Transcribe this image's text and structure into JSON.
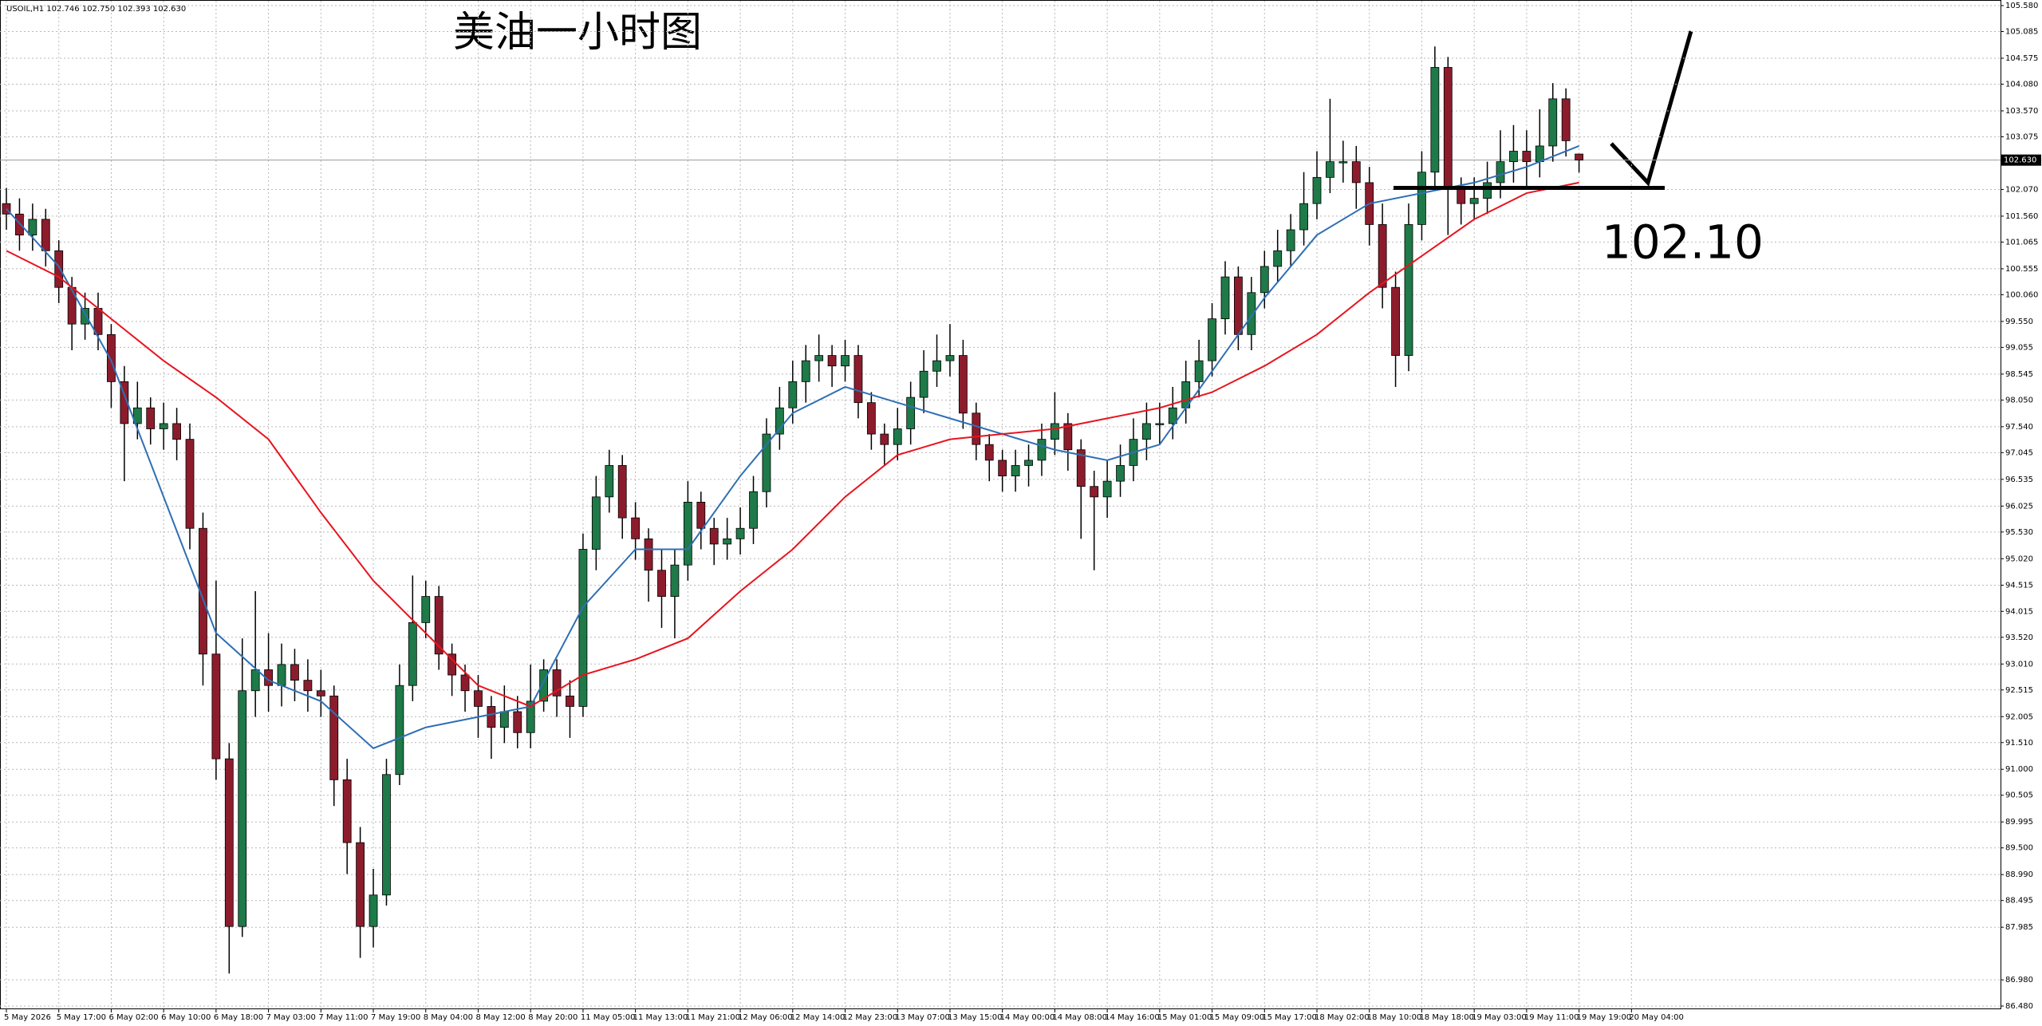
{
  "chart_data": {
    "type": "candlestick",
    "header": "USOIL,H1  102.746 102.750 102.393 102.630",
    "title": "美油一小时图",
    "level": {
      "value": 102.1,
      "label": "102.10"
    },
    "current_price": {
      "value": 102.63,
      "label": "102.630"
    },
    "ylim": [
      86.48,
      105.58
    ],
    "yticks": [
      {
        "value": 105.58,
        "label": "105.580"
      },
      {
        "value": 105.085,
        "label": "105.085"
      },
      {
        "value": 104.575,
        "label": "104.575"
      },
      {
        "value": 104.08,
        "label": "104.080"
      },
      {
        "value": 103.57,
        "label": "103.570"
      },
      {
        "value": 103.075,
        "label": "103.075"
      },
      {
        "value": 102.07,
        "label": "102.070"
      },
      {
        "value": 101.56,
        "label": "101.560"
      },
      {
        "value": 101.065,
        "label": "101.065"
      },
      {
        "value": 100.555,
        "label": "100.555"
      },
      {
        "value": 100.06,
        "label": "100.060"
      },
      {
        "value": 99.55,
        "label": "99.550"
      },
      {
        "value": 99.055,
        "label": "99.055"
      },
      {
        "value": 98.545,
        "label": "98.545"
      },
      {
        "value": 98.05,
        "label": "98.050"
      },
      {
        "value": 97.54,
        "label": "97.540"
      },
      {
        "value": 97.045,
        "label": "97.045"
      },
      {
        "value": 96.535,
        "label": "96.535"
      },
      {
        "value": 96.025,
        "label": "96.025"
      },
      {
        "value": 95.53,
        "label": "95.530"
      },
      {
        "value": 95.02,
        "label": "95.020"
      },
      {
        "value": 94.515,
        "label": "94.515"
      },
      {
        "value": 94.015,
        "label": "94.015"
      },
      {
        "value": 93.52,
        "label": "93.520"
      },
      {
        "value": 93.01,
        "label": "93.010"
      },
      {
        "value": 92.515,
        "label": "92.515"
      },
      {
        "value": 92.005,
        "label": "92.005"
      },
      {
        "value": 91.51,
        "label": "91.510"
      },
      {
        "value": 91,
        "label": "91.000"
      },
      {
        "value": 90.505,
        "label": "90.505"
      },
      {
        "value": 89.995,
        "label": "89.995"
      },
      {
        "value": 89.5,
        "label": "89.500"
      },
      {
        "value": 88.99,
        "label": "88.990"
      },
      {
        "value": 88.495,
        "label": "88.495"
      },
      {
        "value": 87.985,
        "label": "87.985"
      },
      {
        "value": 86.98,
        "label": "86.980"
      },
      {
        "value": 86.48,
        "label": "86.480"
      }
    ],
    "grid": true,
    "bull_color": "#1e7a48",
    "bear_color": "#8c1c2c",
    "categories": [
      "5 May 2026",
      null,
      null,
      null,
      "5 May 17:00",
      null,
      null,
      null,
      "6 May 02:00",
      null,
      null,
      null,
      "6 May 10:00",
      null,
      null,
      null,
      "6 May 18:00",
      null,
      null,
      null,
      "7 May 03:00",
      null,
      null,
      null,
      "7 May 11:00",
      null,
      null,
      null,
      "7 May 19:00",
      null,
      null,
      null,
      "8 May 04:00",
      null,
      null,
      null,
      "8 May 12:00",
      null,
      null,
      null,
      "8 May 20:00",
      null,
      null,
      null,
      "11 May 05:00",
      null,
      null,
      null,
      "11 May 13:00",
      null,
      null,
      null,
      "11 May 21:00",
      null,
      null,
      null,
      "12 May 06:00",
      null,
      null,
      null,
      "12 May 14:00",
      null,
      null,
      null,
      "12 May 23:00",
      null,
      null,
      null,
      "13 May 07:00",
      null,
      null,
      null,
      "13 May 15:00",
      null,
      null,
      null,
      "14 May 00:00",
      null,
      null,
      null,
      "14 May 08:00",
      null,
      null,
      null,
      "14 May 16:00",
      null,
      null,
      null,
      "15 May 01:00",
      null,
      null,
      null,
      "15 May 09:00",
      null,
      null,
      null,
      "15 May 17:00",
      null,
      null,
      null,
      "18 May 02:00",
      null,
      null,
      null,
      "18 May 10:00",
      null,
      null,
      null,
      "18 May 18:00",
      null,
      null,
      null,
      "19 May 03:00",
      null,
      null,
      null,
      "19 May 11:00",
      null,
      null,
      null,
      "19 May 19:00",
      null,
      null,
      null,
      "20 May 04:00"
    ],
    "candles": [
      [
        101.8,
        102.1,
        101.3,
        101.6
      ],
      [
        101.6,
        101.9,
        100.9,
        101.2
      ],
      [
        101.2,
        101.8,
        100.9,
        101.5
      ],
      [
        101.5,
        101.7,
        100.6,
        100.9
      ],
      [
        100.9,
        101.1,
        99.9,
        100.2
      ],
      [
        100.2,
        100.4,
        99.0,
        99.5
      ],
      [
        99.5,
        100.1,
        99.2,
        99.8
      ],
      [
        99.8,
        100.1,
        99.0,
        99.3
      ],
      [
        99.3,
        99.5,
        97.9,
        98.4
      ],
      [
        98.4,
        98.7,
        96.5,
        97.6
      ],
      [
        97.6,
        98.4,
        97.3,
        97.9
      ],
      [
        97.9,
        98.1,
        97.2,
        97.5
      ],
      [
        97.5,
        98.0,
        97.1,
        97.6
      ],
      [
        97.6,
        97.9,
        96.9,
        97.3
      ],
      [
        97.3,
        97.6,
        95.2,
        95.6
      ],
      [
        95.6,
        95.9,
        92.6,
        93.2
      ],
      [
        93.2,
        94.6,
        90.8,
        91.2
      ],
      [
        91.2,
        91.5,
        87.1,
        88.0
      ],
      [
        88.0,
        93.5,
        87.8,
        92.5
      ],
      [
        92.5,
        94.4,
        92.0,
        92.9
      ],
      [
        92.9,
        93.6,
        92.1,
        92.6
      ],
      [
        92.6,
        93.4,
        92.2,
        93.0
      ],
      [
        93.0,
        93.3,
        92.3,
        92.7
      ],
      [
        92.7,
        93.1,
        92.1,
        92.5
      ],
      [
        92.5,
        92.9,
        92.0,
        92.4
      ],
      [
        92.4,
        92.6,
        90.3,
        90.8
      ],
      [
        90.8,
        91.2,
        89.0,
        89.6
      ],
      [
        89.6,
        89.9,
        87.4,
        88.0
      ],
      [
        88.0,
        89.1,
        87.6,
        88.6
      ],
      [
        88.6,
        91.2,
        88.4,
        90.9
      ],
      [
        90.9,
        93.0,
        90.7,
        92.6
      ],
      [
        92.6,
        94.7,
        92.3,
        93.8
      ],
      [
        93.8,
        94.6,
        93.5,
        94.3
      ],
      [
        94.3,
        94.5,
        92.9,
        93.2
      ],
      [
        93.2,
        93.4,
        92.4,
        92.8
      ],
      [
        92.8,
        93.0,
        92.1,
        92.5
      ],
      [
        92.5,
        92.8,
        91.6,
        92.2
      ],
      [
        92.2,
        92.4,
        91.2,
        91.8
      ],
      [
        91.8,
        92.6,
        91.5,
        92.1
      ],
      [
        92.1,
        92.4,
        91.4,
        91.7
      ],
      [
        91.7,
        93.0,
        91.4,
        92.3
      ],
      [
        92.3,
        93.1,
        92.1,
        92.9
      ],
      [
        92.9,
        93.1,
        92.0,
        92.4
      ],
      [
        92.4,
        92.7,
        91.6,
        92.2
      ],
      [
        92.2,
        95.5,
        92.0,
        95.2
      ],
      [
        95.2,
        96.6,
        94.8,
        96.2
      ],
      [
        96.2,
        97.1,
        95.9,
        96.8
      ],
      [
        96.8,
        97.0,
        95.4,
        95.8
      ],
      [
        95.8,
        96.1,
        95.0,
        95.4
      ],
      [
        95.4,
        95.6,
        94.2,
        94.8
      ],
      [
        94.8,
        95.2,
        93.7,
        94.3
      ],
      [
        94.3,
        95.2,
        93.5,
        94.9
      ],
      [
        94.9,
        96.5,
        94.6,
        96.1
      ],
      [
        96.1,
        96.3,
        95.2,
        95.6
      ],
      [
        95.6,
        95.8,
        94.9,
        95.3
      ],
      [
        95.3,
        95.8,
        95.0,
        95.4
      ],
      [
        95.4,
        96.0,
        95.1,
        95.6
      ],
      [
        95.6,
        96.6,
        95.3,
        96.3
      ],
      [
        96.3,
        97.7,
        96.0,
        97.4
      ],
      [
        97.4,
        98.3,
        97.1,
        97.9
      ],
      [
        97.9,
        98.8,
        97.6,
        98.4
      ],
      [
        98.4,
        99.1,
        98.0,
        98.8
      ],
      [
        98.8,
        99.3,
        98.4,
        98.9
      ],
      [
        98.9,
        99.1,
        98.3,
        98.7
      ],
      [
        98.7,
        99.2,
        98.4,
        98.9
      ],
      [
        98.9,
        99.1,
        97.7,
        98.0
      ],
      [
        98.0,
        98.2,
        97.1,
        97.4
      ],
      [
        97.4,
        97.6,
        96.8,
        97.2
      ],
      [
        97.2,
        97.9,
        96.9,
        97.5
      ],
      [
        97.5,
        98.4,
        97.2,
        98.1
      ],
      [
        98.1,
        99.0,
        97.8,
        98.6
      ],
      [
        98.6,
        99.3,
        98.3,
        98.8
      ],
      [
        98.8,
        99.5,
        98.5,
        98.9
      ],
      [
        98.9,
        99.2,
        97.5,
        97.8
      ],
      [
        97.8,
        98.0,
        96.9,
        97.2
      ],
      [
        97.2,
        97.4,
        96.5,
        96.9
      ],
      [
        96.9,
        97.1,
        96.3,
        96.6
      ],
      [
        96.6,
        97.1,
        96.3,
        96.8
      ],
      [
        96.8,
        97.2,
        96.4,
        96.9
      ],
      [
        96.9,
        97.6,
        96.6,
        97.3
      ],
      [
        97.3,
        98.2,
        97.0,
        97.6
      ],
      [
        97.6,
        97.8,
        96.7,
        97.1
      ],
      [
        97.1,
        97.3,
        95.4,
        96.4
      ],
      [
        96.4,
        96.7,
        94.8,
        96.2
      ],
      [
        96.2,
        96.9,
        95.8,
        96.5
      ],
      [
        96.5,
        97.2,
        96.2,
        96.8
      ],
      [
        96.8,
        97.7,
        96.5,
        97.3
      ],
      [
        97.3,
        98.0,
        96.9,
        97.6
      ],
      [
        97.6,
        98.0,
        97.2,
        97.6
      ],
      [
        97.6,
        98.3,
        97.3,
        97.9
      ],
      [
        97.9,
        98.8,
        97.6,
        98.4
      ],
      [
        98.4,
        99.2,
        98.1,
        98.8
      ],
      [
        98.8,
        99.9,
        98.5,
        99.6
      ],
      [
        99.6,
        100.7,
        99.3,
        100.4
      ],
      [
        100.4,
        100.6,
        99.0,
        99.3
      ],
      [
        99.3,
        100.4,
        99.0,
        100.1
      ],
      [
        100.1,
        100.9,
        99.8,
        100.6
      ],
      [
        100.6,
        101.3,
        100.3,
        100.9
      ],
      [
        100.9,
        101.6,
        100.6,
        101.3
      ],
      [
        101.3,
        102.4,
        101.0,
        101.8
      ],
      [
        101.8,
        102.8,
        101.5,
        102.3
      ],
      [
        102.3,
        103.8,
        102.0,
        102.6
      ],
      [
        102.6,
        103.0,
        102.2,
        102.6
      ],
      [
        102.6,
        102.9,
        101.7,
        102.2
      ],
      [
        102.2,
        102.5,
        101.0,
        101.4
      ],
      [
        101.4,
        101.8,
        99.8,
        100.2
      ],
      [
        100.2,
        100.5,
        98.3,
        98.9
      ],
      [
        98.9,
        101.8,
        98.6,
        101.4
      ],
      [
        101.4,
        102.8,
        101.1,
        102.4
      ],
      [
        102.4,
        104.8,
        102.1,
        104.4
      ],
      [
        104.4,
        104.6,
        101.2,
        102.1
      ],
      [
        102.1,
        102.3,
        101.4,
        101.8
      ],
      [
        101.8,
        102.3,
        101.5,
        101.9
      ],
      [
        101.9,
        102.6,
        101.6,
        102.2
      ],
      [
        102.2,
        103.2,
        101.9,
        102.6
      ],
      [
        102.6,
        103.3,
        102.2,
        102.8
      ],
      [
        102.8,
        103.2,
        102.1,
        102.6
      ],
      [
        102.6,
        103.6,
        102.3,
        102.9
      ],
      [
        102.9,
        104.1,
        102.6,
        103.8
      ],
      [
        103.8,
        104.0,
        102.7,
        103.0
      ],
      [
        102.746,
        102.75,
        102.393,
        102.63
      ]
    ],
    "series": [
      {
        "color": "#2e6fb5",
        "x": [
          0,
          4,
          8,
          12,
          16,
          20,
          24,
          28,
          32,
          36,
          40,
          44,
          48,
          52,
          56,
          60,
          64,
          68,
          72,
          76,
          80,
          84,
          88,
          92,
          96,
          100,
          104,
          108,
          112,
          116,
          120
        ],
        "values": [
          101.7,
          100.6,
          98.8,
          96.2,
          93.6,
          92.7,
          92.3,
          91.4,
          91.8,
          92.0,
          92.2,
          94.1,
          95.2,
          95.2,
          96.6,
          97.8,
          98.3,
          98.0,
          97.7,
          97.4,
          97.1,
          96.9,
          97.2,
          98.6,
          100.0,
          101.2,
          101.8,
          102.0,
          102.2,
          102.5,
          102.9
        ]
      },
      {
        "color": "#e8141e",
        "x": [
          0,
          4,
          8,
          12,
          16,
          20,
          24,
          28,
          32,
          36,
          40,
          44,
          48,
          52,
          56,
          60,
          64,
          68,
          72,
          76,
          80,
          84,
          88,
          92,
          96,
          100,
          104,
          108,
          112,
          116,
          120
        ],
        "values": [
          100.9,
          100.4,
          99.6,
          98.8,
          98.1,
          97.3,
          95.9,
          94.6,
          93.6,
          92.6,
          92.2,
          92.8,
          93.1,
          93.5,
          94.4,
          95.2,
          96.2,
          97.0,
          97.3,
          97.4,
          97.5,
          97.7,
          97.9,
          98.2,
          98.7,
          99.3,
          100.1,
          100.8,
          101.5,
          102.0,
          102.2
        ]
      }
    ]
  }
}
